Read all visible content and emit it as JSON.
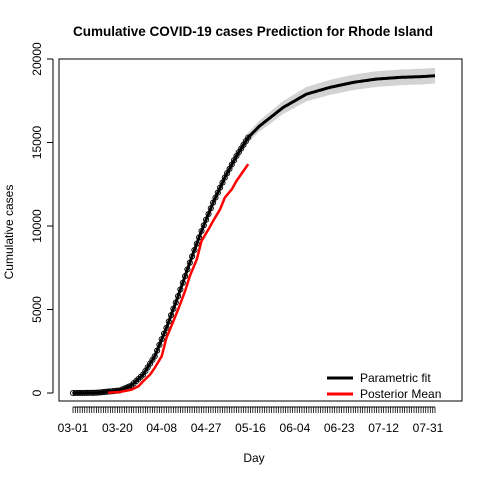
{
  "chart_data": {
    "type": "line",
    "title": "Cumulative COVID-19 cases Prediction for Rhode Island",
    "xlabel": "Day",
    "ylabel": "Cumulative cases",
    "x_tick_labels": [
      "03-01",
      "03-20",
      "04-08",
      "04-27",
      "05-16",
      "06-04",
      "06-23",
      "07-12",
      "07-31"
    ],
    "x_day_range": [
      0,
      155
    ],
    "x_tick_day_interval": 19,
    "y_ticks": [
      0,
      5000,
      10000,
      15000,
      20000
    ],
    "ylim": [
      0,
      20000
    ],
    "grid": false,
    "legend_position": "bottom-right",
    "series": [
      {
        "name": "Parametric fit",
        "color": "#000000",
        "style": "thick line with open circle markers and grey confidence band",
        "x_day": [
          0,
          10,
          20,
          25,
          30,
          35,
          40,
          45,
          50,
          55,
          60,
          65,
          70,
          75,
          80,
          90,
          100,
          110,
          120,
          130,
          140,
          150,
          155
        ],
        "y": [
          0,
          15,
          150,
          450,
          1100,
          2200,
          3900,
          5800,
          7800,
          9700,
          11400,
          12900,
          14200,
          15300,
          16000,
          17100,
          17900,
          18300,
          18600,
          18800,
          18900,
          18950,
          19000
        ],
        "band_half_width": [
          0,
          0,
          10,
          20,
          40,
          60,
          90,
          110,
          130,
          150,
          180,
          210,
          250,
          290,
          330,
          390,
          430,
          450,
          460,
          470,
          470,
          470,
          470
        ]
      },
      {
        "name": "Posterior Mean",
        "color": "#ff0000",
        "x_day": [
          15,
          20,
          25,
          28,
          30,
          33,
          35,
          38,
          40,
          43,
          45,
          48,
          50,
          53,
          55,
          58,
          60,
          63,
          65,
          68,
          70,
          73,
          75
        ],
        "y": [
          10,
          60,
          200,
          400,
          700,
          1100,
          1500,
          2200,
          3300,
          4300,
          5000,
          6100,
          7000,
          8000,
          9100,
          9800,
          10300,
          11000,
          11700,
          12200,
          12700,
          13300,
          13700
        ]
      }
    ]
  }
}
